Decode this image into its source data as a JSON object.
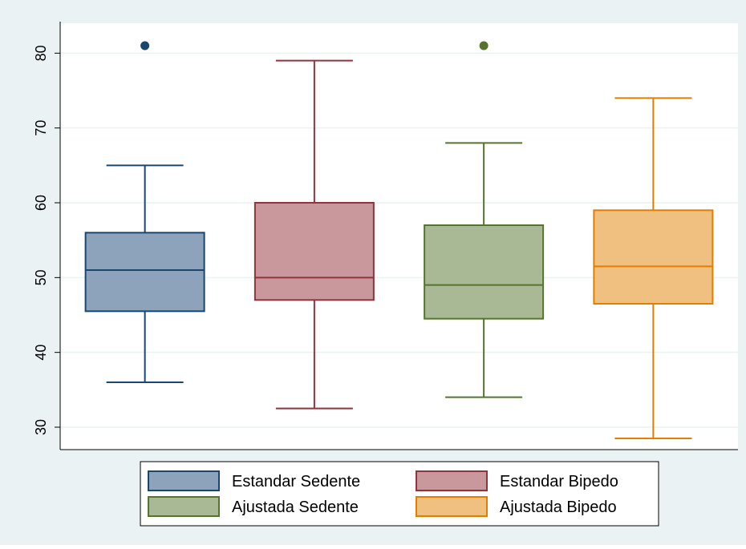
{
  "colors": {
    "background": "#eaf2f3",
    "plot_area": "#ffffff",
    "gridline": "#eaf2f3",
    "axis": "#000000"
  },
  "chart_data": {
    "type": "box",
    "title": "",
    "xlabel": "",
    "ylabel": "",
    "ylim": [
      27,
      84
    ],
    "yticks": [
      30,
      40,
      50,
      60,
      70,
      80
    ],
    "grid": true,
    "legend_position": "bottom",
    "series": [
      {
        "name": "Estandar Sedente",
        "min": 36,
        "q1": 45.5,
        "median": 51,
        "q3": 56,
        "max": 65,
        "outliers": [
          81
        ],
        "fill": "#8da3bb",
        "stroke": "#1a476f"
      },
      {
        "name": "Estandar Bipedo",
        "min": 32.5,
        "q1": 47,
        "median": 50,
        "q3": 60,
        "max": 79,
        "outliers": [],
        "fill": "#c8989c",
        "stroke": "#90353b"
      },
      {
        "name": "Ajustada Sedente",
        "min": 34,
        "q1": 44.5,
        "median": 49,
        "q3": 57,
        "max": 68,
        "outliers": [
          81
        ],
        "fill": "#a9b995",
        "stroke": "#55752f"
      },
      {
        "name": "Ajustada Bipedo",
        "min": 28.5,
        "q1": 46.5,
        "median": 51.5,
        "q3": 59,
        "max": 74,
        "outliers": [],
        "fill": "#f0c080",
        "stroke": "#e37e00"
      }
    ]
  }
}
